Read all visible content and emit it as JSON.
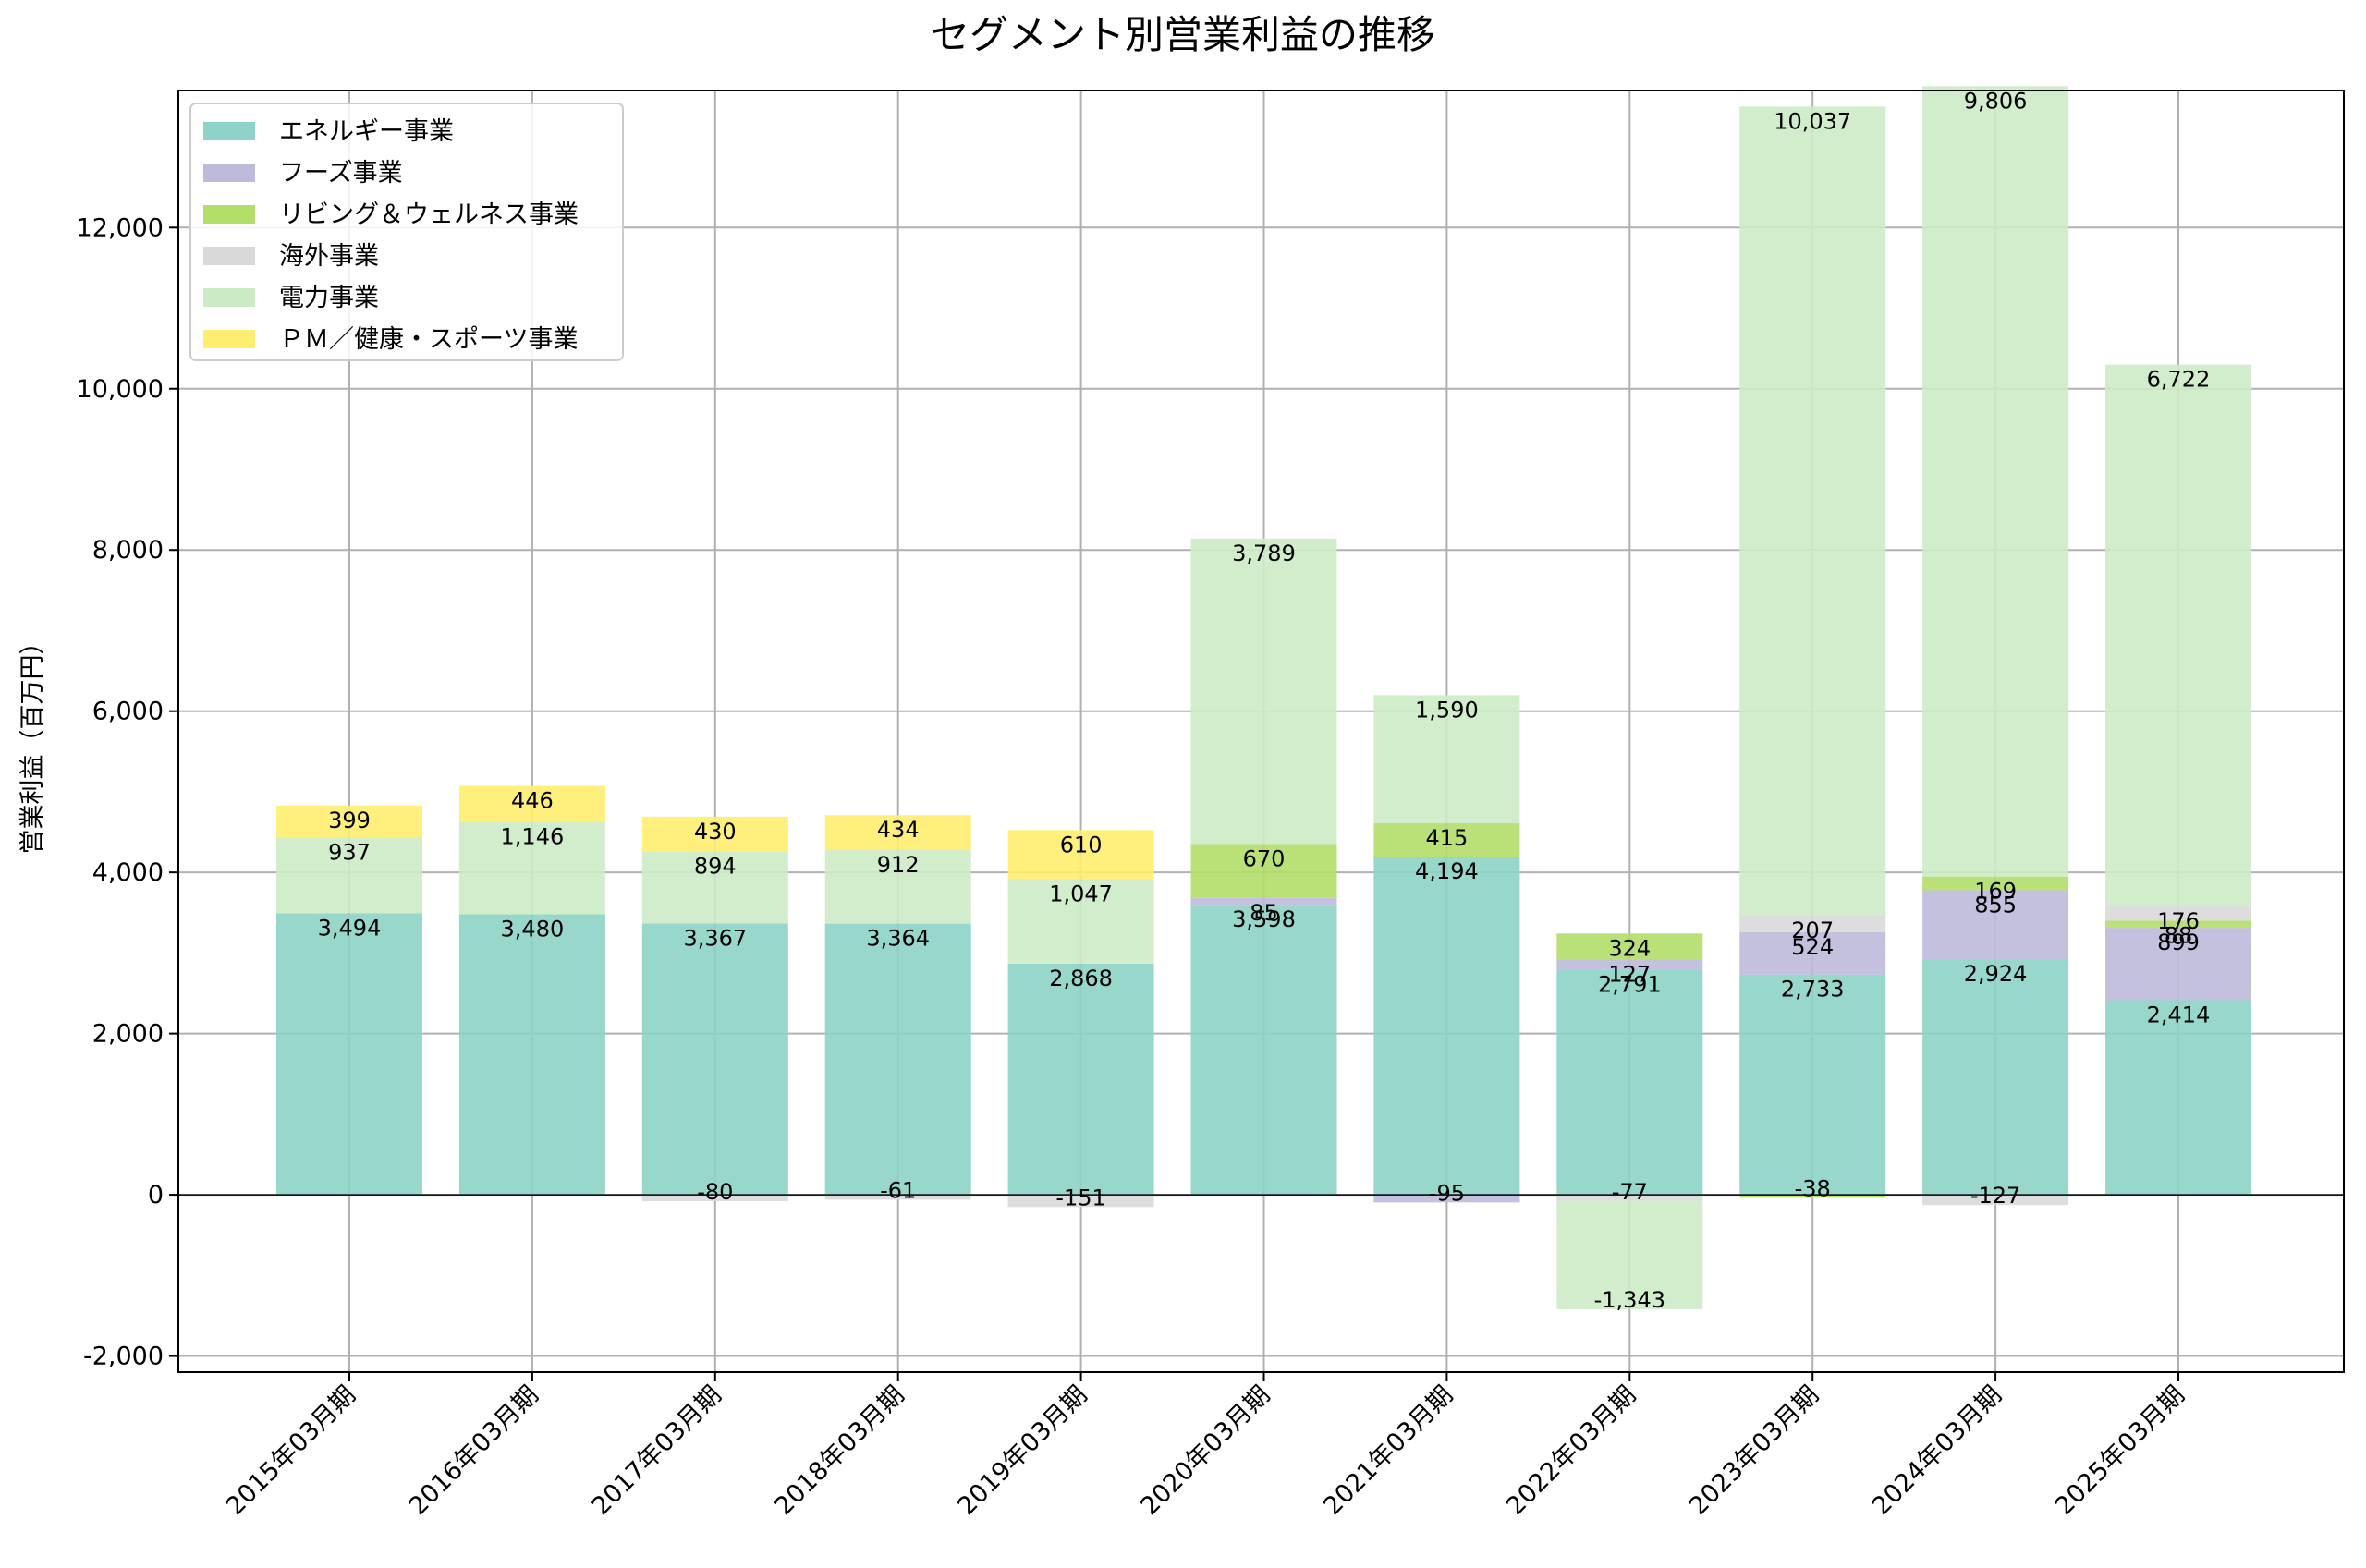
{
  "chart_data": {
    "type": "bar",
    "stacked": true,
    "title": "セグメント別営業利益の推移",
    "xlabel": "",
    "ylabel": "営業利益（百万円）",
    "ylim": [
      -2200,
      13700
    ],
    "yticks": [
      -2000,
      0,
      2000,
      4000,
      6000,
      8000,
      10000,
      12000
    ],
    "ytick_labels": [
      "-2,000",
      "0",
      "2,000",
      "4,000",
      "6,000",
      "8,000",
      "10,000",
      "12,000"
    ],
    "grid": true,
    "legend_position": "top-left",
    "categories": [
      "2015年03月期",
      "2016年03月期",
      "2017年03月期",
      "2018年03月期",
      "2019年03月期",
      "2020年03月期",
      "2021年03月期",
      "2022年03月期",
      "2023年03月期",
      "2024年03月期",
      "2025年03月期"
    ],
    "series": [
      {
        "name": "エネルギー事業",
        "color": "#8dd3c7",
        "values": [
          3494,
          3480,
          3367,
          3364,
          2868,
          3598,
          4194,
          2791,
          2733,
          2924,
          2414
        ]
      },
      {
        "name": "フーズ事業",
        "color": "#bebada",
        "values": [
          0,
          0,
          0,
          0,
          0,
          85,
          -95,
          127,
          524,
          855,
          899
        ]
      },
      {
        "name": "リビング＆ウェルネス事業",
        "color": "#b3de69",
        "values": [
          0,
          0,
          0,
          0,
          0,
          670,
          415,
          324,
          -38,
          169,
          88
        ]
      },
      {
        "name": "海外事業",
        "color": "#d9d9d9",
        "values": [
          0,
          0,
          -80,
          -61,
          -151,
          0,
          0,
          -77,
          207,
          -127,
          176
        ]
      },
      {
        "name": "電力事業",
        "color": "#ccebc5",
        "values": [
          937,
          1146,
          894,
          912,
          1047,
          3789,
          1590,
          -1343,
          10037,
          9806,
          6722
        ]
      },
      {
        "name": "ＰＭ／健康・スポーツ事業",
        "color": "#ffed6f",
        "values": [
          399,
          446,
          430,
          434,
          610,
          0,
          0,
          0,
          0,
          0,
          0
        ]
      }
    ]
  }
}
